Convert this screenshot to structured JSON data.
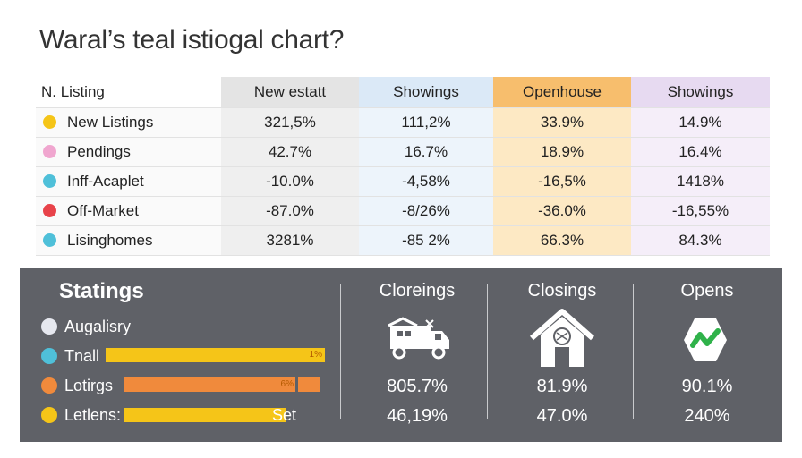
{
  "title": "Waral’s teal istiogal chart?",
  "chart_data": {
    "type": "table",
    "columns": [
      "N. Listing",
      "New estatt",
      "Showings",
      "Openhouse",
      "Showings"
    ],
    "rows": [
      {
        "label": "New Listings",
        "color": "#f5c518",
        "values": [
          "321,5%",
          "111,2%",
          "33.9%",
          "14.9%"
        ]
      },
      {
        "label": "Pendings",
        "color": "#f0a6cf",
        "values": [
          "42.7%",
          "16.7%",
          "18.9%",
          "16.4%"
        ]
      },
      {
        "label": "Inff-Acaplet",
        "color": "#4fc0d9",
        "values": [
          "-10.0%",
          "-4,58%",
          "-16,5%",
          "1418%"
        ]
      },
      {
        "label": "Off-Market",
        "color": "#e8434a",
        "values": [
          "-87.0%",
          "-8/26%",
          "-36.0%",
          "-16,55%"
        ]
      },
      {
        "label": "Lisinghomes",
        "color": "#4fc0d9",
        "values": [
          "3281%",
          "-85 2%",
          "66.3%",
          "84.3%"
        ]
      }
    ],
    "stats": {
      "title": "Statings",
      "items": [
        {
          "label": "Augalisry",
          "color": "#e6e8ef",
          "bar": null,
          "bar_label": ""
        },
        {
          "label": "Tnall",
          "color": "#4fc0d9",
          "bar": 1.0,
          "bar_label": "1%",
          "bar_color": "#f5c518"
        },
        {
          "label": "Lotirgs",
          "color": "#f08a3c",
          "bar": 0.85,
          "bar_label": "6%",
          "bar_color": "#f08a3c"
        },
        {
          "label": "Letlens:",
          "color": "#f5c518",
          "bar": 0.78,
          "bar_label": "Set",
          "bar_color": "#f5c518"
        }
      ]
    },
    "metrics": [
      {
        "title": "Cloreings",
        "icon": "truck-house-icon",
        "values": [
          "805.7%",
          "46,19%"
        ]
      },
      {
        "title": "Closings",
        "icon": "house-icon",
        "values": [
          "81.9%",
          "47.0%"
        ]
      },
      {
        "title": "Opens",
        "icon": "check-hexagon-icon",
        "values": [
          "90.1%",
          "240%"
        ]
      }
    ]
  }
}
